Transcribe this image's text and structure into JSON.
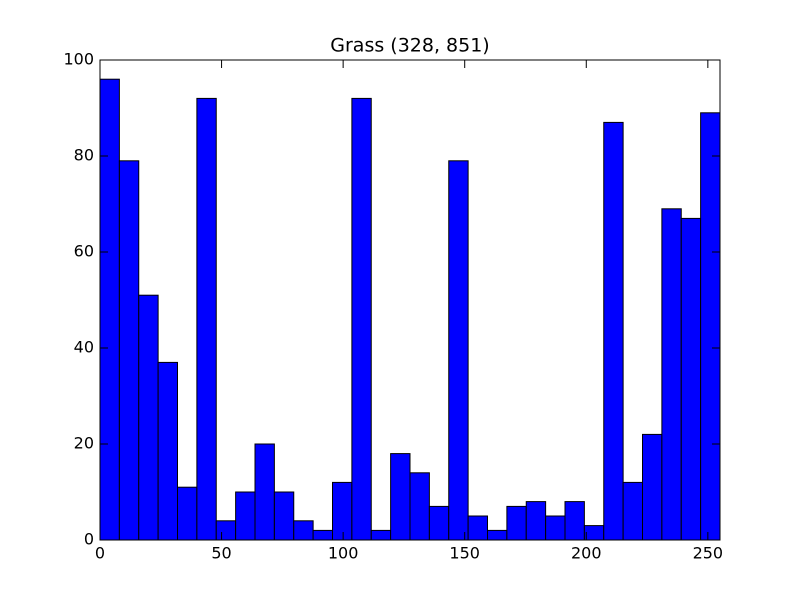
{
  "chart_data": {
    "type": "histogram",
    "title": "Grass (328, 851)",
    "bins": [
      0.0,
      7.96875,
      15.9375,
      23.90625,
      31.875,
      39.84375,
      47.8125,
      55.78125,
      63.75,
      71.71875,
      79.6875,
      87.65625,
      95.625,
      103.59375,
      111.5625,
      119.53125,
      127.5,
      135.46875,
      143.4375,
      151.40625,
      159.375,
      167.34375,
      175.3125,
      183.28125,
      191.25,
      199.21875,
      207.1875,
      215.15625,
      223.125,
      231.09375,
      239.0625,
      247.03125,
      255.0
    ],
    "values": [
      96,
      79,
      51,
      37,
      11,
      92,
      4,
      10,
      20,
      10,
      4,
      2,
      12,
      92,
      2,
      18,
      14,
      7,
      79,
      5,
      2,
      7,
      8,
      5,
      8,
      3,
      87,
      12,
      22,
      69,
      67,
      89
    ],
    "color": "#0000ff",
    "xlim": [
      0,
      255
    ],
    "xticks": [
      0,
      50,
      100,
      150,
      200,
      250
    ],
    "ylim": [
      0,
      100
    ],
    "yticks": [
      0,
      20,
      40,
      60,
      80,
      100
    ],
    "grid": false
  }
}
